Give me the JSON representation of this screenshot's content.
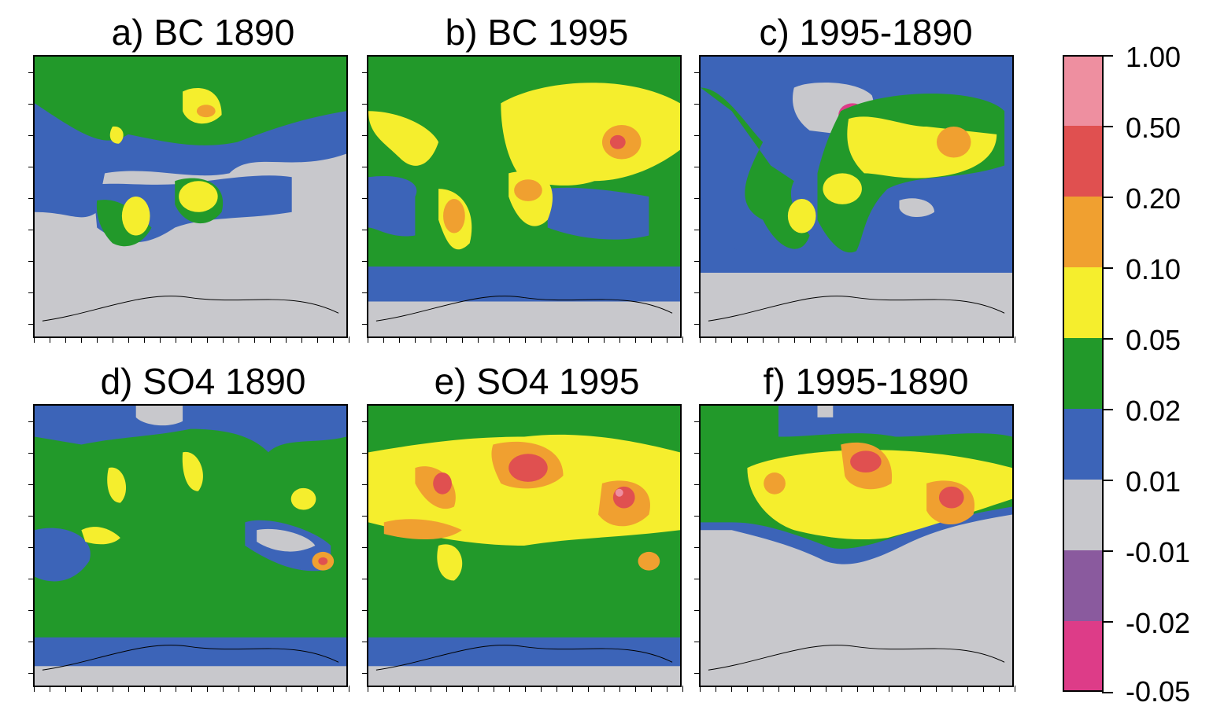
{
  "panels": [
    {
      "id": "a",
      "title": "a) BC 1890"
    },
    {
      "id": "b",
      "title": "b) BC 1995"
    },
    {
      "id": "c",
      "title": "c)  1995-1890"
    },
    {
      "id": "d",
      "title": "d) SO4 1890"
    },
    {
      "id": "e",
      "title": "e) SO4 1995"
    },
    {
      "id": "f",
      "title": "f)  1995-1890"
    }
  ],
  "colorbar": {
    "labels": [
      "1.00",
      "0.50",
      "0.20",
      "0.10",
      "0.05",
      "0.02",
      "0.01",
      "-0.01",
      "-0.02",
      "-0.05"
    ],
    "colors": [
      "#ee8fa0",
      "#e05050",
      "#f0a030",
      "#f5ee2d",
      "#22992a",
      "#3c64b8",
      "#c8c8cc",
      "#8a5a9e",
      "#dd3c88"
    ]
  },
  "map_colors": {
    "gray": "#c8c8cc",
    "blue": "#3c64b8",
    "green": "#22992a",
    "yellow": "#f5ee2d",
    "orange": "#f0a030",
    "red": "#e05050",
    "pink": "#ee8fa0",
    "purple": "#8a5a9e",
    "magenta": "#dd3c88"
  }
}
